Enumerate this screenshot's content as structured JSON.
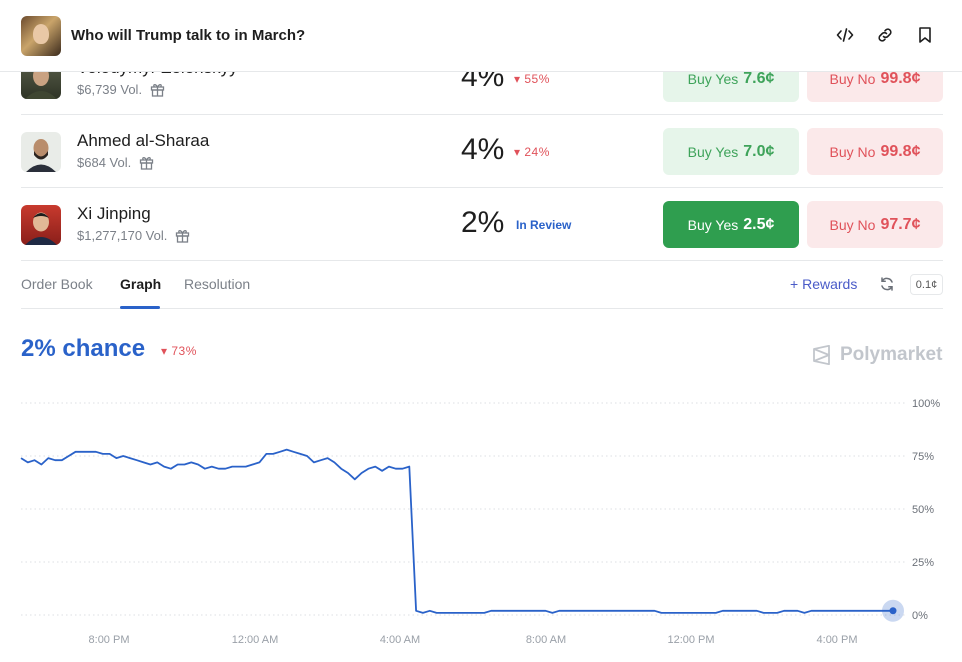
{
  "header": {
    "title": "Who will Trump talk to in March?",
    "icons": [
      "embed-icon",
      "link-icon",
      "bookmark-icon"
    ]
  },
  "outcomes": [
    {
      "name": "Volodymyr Zelenskyy",
      "volume": "$6,739 Vol.",
      "percent": "4%",
      "change": "55%",
      "status": "",
      "buy_yes": "Buy Yes",
      "yes_price": "7.6¢",
      "buy_no": "Buy No",
      "no_price": "99.8¢",
      "selected": false
    },
    {
      "name": "Ahmed al-Sharaa",
      "volume": "$684 Vol.",
      "percent": "4%",
      "change": "24%",
      "status": "",
      "buy_yes": "Buy Yes",
      "yes_price": "7.0¢",
      "buy_no": "Buy No",
      "no_price": "99.8¢",
      "selected": false
    },
    {
      "name": "Xi Jinping",
      "volume": "$1,277,170 Vol.",
      "percent": "2%",
      "change": "",
      "status": "In Review",
      "buy_yes": "Buy Yes",
      "yes_price": "2.5¢",
      "buy_no": "Buy No",
      "no_price": "97.7¢",
      "selected": true
    }
  ],
  "tabs": {
    "order_book": "Order Book",
    "graph": "Graph",
    "resolution": "Resolution",
    "active": "Graph"
  },
  "toolbar": {
    "rewards": "Rewards",
    "tick_size": "0.1¢"
  },
  "summary": {
    "chance": "2% chance",
    "change": "73%"
  },
  "brand": {
    "name": "Polymarket"
  },
  "colors": {
    "accent": "#2a62c9",
    "yes": "#2f9e4f",
    "no": "#e0525a",
    "line": "#2a62c9"
  },
  "chart_data": {
    "type": "line",
    "x_labels": [
      "8:00 PM",
      "12:00 AM",
      "4:00 AM",
      "8:00 AM",
      "12:00 PM",
      "4:00 PM"
    ],
    "y_labels": [
      "100%",
      "75%",
      "50%",
      "25%",
      "0%"
    ],
    "ylim": [
      0,
      100
    ],
    "grid": true,
    "series": [
      {
        "values": [
          74,
          72,
          73,
          71,
          74,
          73,
          73,
          75,
          77,
          77,
          77,
          77,
          76,
          76,
          74,
          75,
          74,
          73,
          72,
          71,
          72,
          70,
          69,
          71,
          71,
          72,
          71,
          69,
          70,
          69,
          69,
          70,
          70,
          70,
          71,
          72,
          76,
          76,
          77,
          78,
          77,
          76,
          75,
          72,
          73,
          74,
          72,
          69,
          67,
          64,
          67,
          69,
          70,
          68,
          70,
          69,
          69,
          70,
          2,
          1,
          2,
          1,
          1,
          1,
          1,
          1,
          1,
          1,
          1,
          2,
          2,
          2,
          2,
          2,
          2,
          2,
          2,
          2,
          1,
          2,
          2,
          2,
          2,
          2,
          2,
          2,
          2,
          2,
          2,
          2,
          2,
          2,
          2,
          2,
          1,
          1,
          1,
          1,
          1,
          1,
          1,
          1,
          1,
          2,
          2,
          2,
          2,
          2,
          2,
          1,
          1,
          1,
          2,
          2,
          2,
          1,
          2,
          2,
          2,
          2,
          2,
          2,
          2,
          2,
          2,
          2,
          2,
          2,
          2
        ]
      }
    ]
  }
}
